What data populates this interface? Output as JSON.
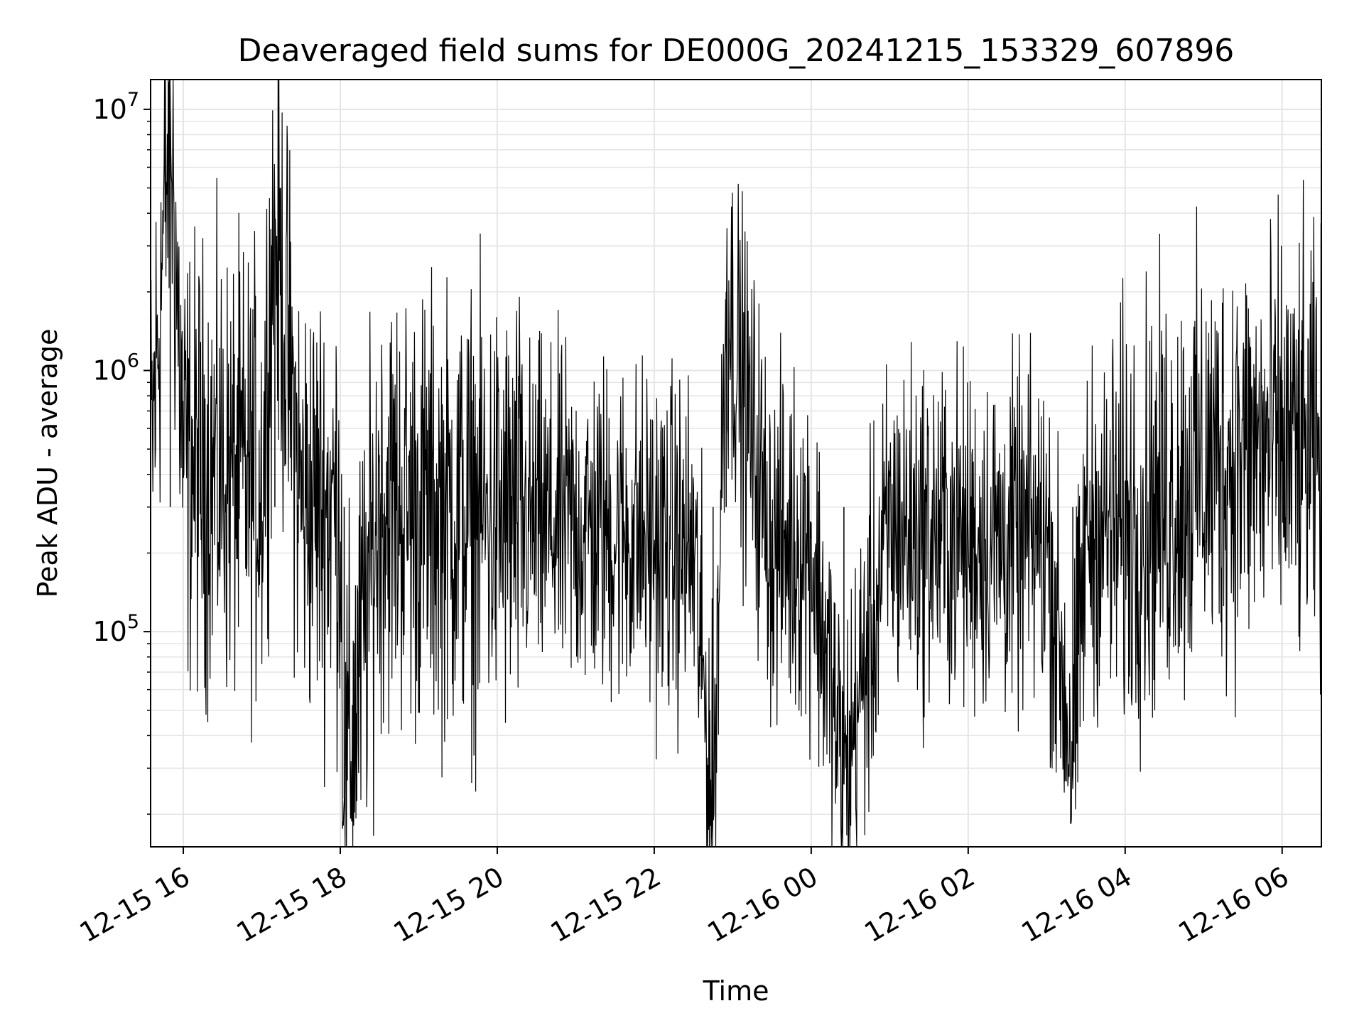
{
  "chart_data": {
    "type": "line",
    "title": "Deaveraged field sums for DE000G_20241215_153329_607896",
    "xlabel": "Time",
    "ylabel": "Peak ADU - average",
    "xlim": [
      "2024-12-15 15:35",
      "2024-12-16 06:30"
    ],
    "ylim": [
      15000,
      13000000
    ],
    "yscale": "log",
    "grid": true,
    "line_color": "#000000",
    "grid_color": "#e5e5e5",
    "x_ticks": [
      "2024-12-15 16:00",
      "2024-12-15 18:00",
      "2024-12-15 20:00",
      "2024-12-15 22:00",
      "2024-12-16 00:00",
      "2024-12-16 02:00",
      "2024-12-16 04:00",
      "2024-12-16 06:00"
    ],
    "x_tick_labels": [
      "12-15 16",
      "12-15 18",
      "12-15 20",
      "12-15 22",
      "12-16 00",
      "12-16 02",
      "12-16 04",
      "12-16 06"
    ],
    "y_ticks": [
      100000,
      1000000,
      10000000
    ],
    "y_tick_labels": [
      {
        "base": "10",
        "exp": "5"
      },
      {
        "base": "10",
        "exp": "6"
      },
      {
        "base": "10",
        "exp": "7"
      }
    ],
    "series": [
      {
        "points": [
          {
            "x": "2024-12-15 15:35",
            "y": 400000
          },
          {
            "x": "2024-12-15 15:50",
            "y": 9900000
          },
          {
            "x": "2024-12-15 16:00",
            "y": 450000
          },
          {
            "x": "2024-12-15 16:30",
            "y": 400000
          },
          {
            "x": "2024-12-15 17:00",
            "y": 380000
          },
          {
            "x": "2024-12-15 17:10",
            "y": 3800000
          },
          {
            "x": "2024-12-15 17:30",
            "y": 320000
          },
          {
            "x": "2024-12-15 18:00",
            "y": 300000
          },
          {
            "x": "2024-12-15 18:03",
            "y": 23000
          },
          {
            "x": "2024-12-15 18:30",
            "y": 320000
          },
          {
            "x": "2024-12-15 19:00",
            "y": 290000
          },
          {
            "x": "2024-12-15 19:30",
            "y": 280000
          },
          {
            "x": "2024-12-15 20:00",
            "y": 270000
          },
          {
            "x": "2024-12-15 20:30",
            "y": 260000
          },
          {
            "x": "2024-12-15 21:00",
            "y": 250000
          },
          {
            "x": "2024-12-15 21:30",
            "y": 240000
          },
          {
            "x": "2024-12-15 22:00",
            "y": 220000
          },
          {
            "x": "2024-12-15 22:30",
            "y": 200000
          },
          {
            "x": "2024-12-15 22:45",
            "y": 19000
          },
          {
            "x": "2024-12-15 22:55",
            "y": 2000000
          },
          {
            "x": "2024-12-15 23:30",
            "y": 210000
          },
          {
            "x": "2024-12-16 00:00",
            "y": 220000
          },
          {
            "x": "2024-12-16 00:25",
            "y": 26000
          },
          {
            "x": "2024-12-16 01:00",
            "y": 250000
          },
          {
            "x": "2024-12-16 01:30",
            "y": 240000
          },
          {
            "x": "2024-12-16 02:00",
            "y": 230000
          },
          {
            "x": "2024-12-16 02:30",
            "y": 220000
          },
          {
            "x": "2024-12-16 03:00",
            "y": 230000
          },
          {
            "x": "2024-12-16 03:20",
            "y": 32000
          },
          {
            "x": "2024-12-16 03:30",
            "y": 240000
          },
          {
            "x": "2024-12-16 04:00",
            "y": 250000
          },
          {
            "x": "2024-12-16 04:30",
            "y": 320000
          },
          {
            "x": "2024-12-16 05:00",
            "y": 420000
          },
          {
            "x": "2024-12-16 05:30",
            "y": 480000
          },
          {
            "x": "2024-12-16 06:00",
            "y": 500000
          },
          {
            "x": "2024-12-16 06:30",
            "y": 450000
          }
        ]
      }
    ]
  }
}
